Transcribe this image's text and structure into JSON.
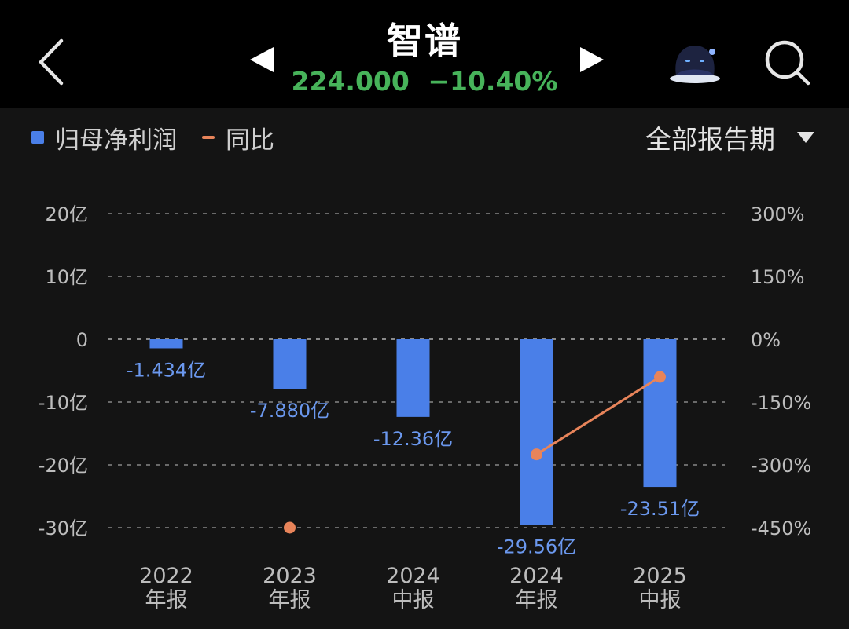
{
  "header": {
    "title": "智谱",
    "price": "224.000",
    "change": "−10.40%",
    "quote_color": "#47b35a"
  },
  "icons": {
    "back": "chevron-left-icon",
    "prev": "triangle-left-icon",
    "next": "triangle-right-icon",
    "avatar": "avatar-icon",
    "search": "search-icon"
  },
  "legend": {
    "bar_label": "归母净利润",
    "line_label": "同比"
  },
  "period_select": {
    "label": "全部报告期"
  },
  "chart_data": {
    "type": "bar",
    "categories": [
      [
        "2022",
        "年报"
      ],
      [
        "2023",
        "年报"
      ],
      [
        "2024",
        "中报"
      ],
      [
        "2024",
        "年报"
      ],
      [
        "2025",
        "中报"
      ]
    ],
    "series": [
      {
        "name": "归母净利润",
        "type": "bar",
        "axis": "left",
        "unit": "亿",
        "color": "#4a7fe8",
        "values": [
          -1.434,
          -7.88,
          -12.36,
          -29.56,
          -23.51
        ],
        "labels": [
          "-1.434亿",
          "-7.880亿",
          "-12.36亿",
          "-29.56亿",
          "-23.51亿"
        ]
      },
      {
        "name": "同比",
        "type": "line",
        "axis": "right",
        "unit": "%",
        "color": "#e8845a",
        "values": [
          null,
          -450,
          null,
          -275,
          -90
        ]
      }
    ],
    "left_axis": {
      "ylim": [
        -30,
        20
      ],
      "ticks": [
        20,
        10,
        0,
        -10,
        -20,
        -30
      ],
      "tick_labels": [
        "20亿",
        "10亿",
        "0",
        "-10亿",
        "-20亿",
        "-30亿"
      ]
    },
    "right_axis": {
      "ylim": [
        -450,
        300
      ],
      "ticks": [
        300,
        150,
        0,
        -150,
        -300,
        -450
      ],
      "tick_labels": [
        "300%",
        "150%",
        "0%",
        "-150%",
        "-300%",
        "-450%"
      ]
    },
    "grid": true,
    "legend_position": "top-left"
  }
}
